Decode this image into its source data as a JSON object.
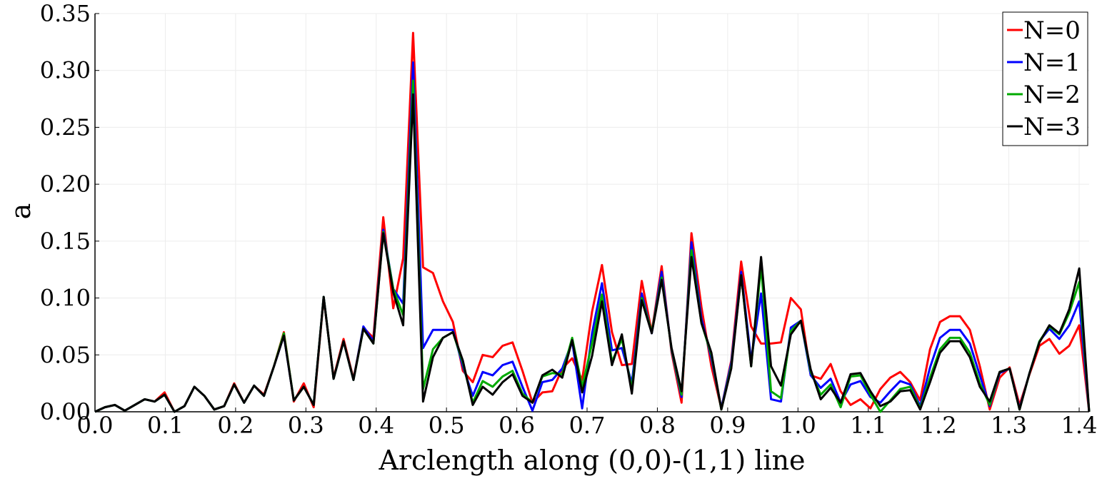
{
  "chart_data": {
    "type": "line",
    "x_label": "Arclength along (0,0)-(1,1) line",
    "y_label": "a",
    "x": [
      0,
      0.0141,
      0.0283,
      0.0424,
      0.0566,
      0.0707,
      0.0849,
      0.099,
      0.1131,
      0.1273,
      0.1414,
      0.1556,
      0.1697,
      0.1838,
      0.198,
      0.2121,
      0.2263,
      0.2404,
      0.2546,
      0.2687,
      0.2828,
      0.297,
      0.3111,
      0.3253,
      0.3394,
      0.3536,
      0.3677,
      0.3818,
      0.396,
      0.4101,
      0.4243,
      0.4384,
      0.4525,
      0.4667,
      0.4808,
      0.495,
      0.5091,
      0.5233,
      0.5374,
      0.5515,
      0.5657,
      0.5798,
      0.594,
      0.6081,
      0.6223,
      0.6364,
      0.6505,
      0.6647,
      0.6788,
      0.693,
      0.7071,
      0.7212,
      0.7354,
      0.7495,
      0.7637,
      0.7778,
      0.792,
      0.8061,
      0.8202,
      0.8344,
      0.8485,
      0.8627,
      0.8768,
      0.891,
      0.9051,
      0.9192,
      0.9334,
      0.9475,
      0.9617,
      0.9758,
      0.9899,
      1.0041,
      1.0182,
      1.0324,
      1.0465,
      1.0607,
      1.0748,
      1.0889,
      1.1031,
      1.1172,
      1.1314,
      1.1455,
      1.1597,
      1.1738,
      1.1879,
      1.2021,
      1.2162,
      1.2304,
      1.2445,
      1.2587,
      1.2728,
      1.2869,
      1.3011,
      1.3152,
      1.3294,
      1.3435,
      1.3576,
      1.3718,
      1.3859,
      1.4001,
      1.4142
    ],
    "series": [
      {
        "name": "N=0",
        "color": "#ff0000",
        "values": [
          0,
          0.004,
          0.006,
          0.001,
          0.006,
          0.011,
          0.009,
          0.017,
          0,
          0.005,
          0.022,
          0.014,
          0.002,
          0.005,
          0.025,
          0.008,
          0.023,
          0.015,
          0.04,
          0.07,
          0.009,
          0.025,
          0.004,
          0.1,
          0.03,
          0.064,
          0.029,
          0.074,
          0.065,
          0.171,
          0.091,
          0.135,
          0.333,
          0.127,
          0.122,
          0.097,
          0.079,
          0.036,
          0.026,
          0.05,
          0.048,
          0.058,
          0.061,
          0.036,
          0.008,
          0.017,
          0.018,
          0.038,
          0.047,
          0.028,
          0.088,
          0.129,
          0.07,
          0.041,
          0.042,
          0.115,
          0.07,
          0.128,
          0.052,
          0.008,
          0.157,
          0.092,
          0.04,
          0.003,
          0.045,
          0.132,
          0.075,
          0.06,
          0.06,
          0.061,
          0.1,
          0.09,
          0.032,
          0.029,
          0.042,
          0.018,
          0.006,
          0.011,
          0.003,
          0.02,
          0.03,
          0.035,
          0.026,
          0.01,
          0.055,
          0.079,
          0.084,
          0.084,
          0.072,
          0.04,
          0.002,
          0.03,
          0.039,
          0.006,
          0.033,
          0.058,
          0.064,
          0.051,
          0.058,
          0.076,
          0
        ]
      },
      {
        "name": "N=1",
        "color": "#0000ff",
        "values": [
          0,
          0.004,
          0.006,
          0.001,
          0.006,
          0.011,
          0.009,
          0.015,
          0,
          0.005,
          0.022,
          0.014,
          0.002,
          0.005,
          0.024,
          0.008,
          0.023,
          0.014,
          0.04,
          0.067,
          0.01,
          0.022,
          0.006,
          0.101,
          0.029,
          0.062,
          0.028,
          0.075,
          0.062,
          0.16,
          0.108,
          0.095,
          0.307,
          0.056,
          0.072,
          0.072,
          0.072,
          0.04,
          0.014,
          0.035,
          0.032,
          0.041,
          0.044,
          0.022,
          0.001,
          0.026,
          0.028,
          0.038,
          0.062,
          0.003,
          0.069,
          0.113,
          0.054,
          0.056,
          0.025,
          0.104,
          0.069,
          0.123,
          0.054,
          0.013,
          0.149,
          0.082,
          0.047,
          0.003,
          0.043,
          0.123,
          0.045,
          0.104,
          0.011,
          0.009,
          0.074,
          0.08,
          0.032,
          0.021,
          0.029,
          0.008,
          0.024,
          0.027,
          0.013,
          0.008,
          0.018,
          0.027,
          0.024,
          0.005,
          0.039,
          0.065,
          0.072,
          0.072,
          0.06,
          0.032,
          0.005,
          0.034,
          0.038,
          0.003,
          0.034,
          0.062,
          0.073,
          0.064,
          0.076,
          0.097,
          0
        ]
      },
      {
        "name": "N=2",
        "color": "#00aa00",
        "values": [
          0,
          0.004,
          0.006,
          0.001,
          0.006,
          0.011,
          0.009,
          0.015,
          0,
          0.005,
          0.022,
          0.014,
          0.002,
          0.005,
          0.024,
          0.008,
          0.023,
          0.014,
          0.04,
          0.069,
          0.01,
          0.022,
          0.006,
          0.101,
          0.029,
          0.062,
          0.028,
          0.073,
          0.06,
          0.158,
          0.108,
          0.085,
          0.291,
          0.02,
          0.055,
          0.065,
          0.07,
          0.043,
          0.008,
          0.027,
          0.022,
          0.031,
          0.036,
          0.016,
          0.008,
          0.031,
          0.034,
          0.033,
          0.065,
          0.022,
          0.06,
          0.103,
          0.044,
          0.064,
          0.02,
          0.1,
          0.07,
          0.118,
          0.055,
          0.015,
          0.142,
          0.078,
          0.05,
          0.002,
          0.04,
          0.12,
          0.04,
          0.128,
          0.018,
          0.012,
          0.071,
          0.08,
          0.035,
          0.015,
          0.024,
          0.004,
          0.031,
          0.032,
          0.015,
          0.0,
          0.01,
          0.02,
          0.022,
          0.003,
          0.03,
          0.055,
          0.065,
          0.065,
          0.052,
          0.025,
          0.006,
          0.035,
          0.038,
          0.002,
          0.034,
          0.062,
          0.075,
          0.068,
          0.087,
          0.114,
          0
        ]
      },
      {
        "name": "N=3",
        "color": "#000000",
        "values": [
          0,
          0.004,
          0.006,
          0.001,
          0.006,
          0.011,
          0.009,
          0.015,
          0,
          0.005,
          0.022,
          0.014,
          0.002,
          0.005,
          0.024,
          0.008,
          0.023,
          0.014,
          0.04,
          0.067,
          0.01,
          0.022,
          0.006,
          0.101,
          0.029,
          0.062,
          0.028,
          0.073,
          0.06,
          0.157,
          0.105,
          0.076,
          0.279,
          0.009,
          0.048,
          0.065,
          0.07,
          0.045,
          0.006,
          0.022,
          0.015,
          0.026,
          0.033,
          0.014,
          0.008,
          0.032,
          0.037,
          0.03,
          0.063,
          0.017,
          0.049,
          0.097,
          0.041,
          0.068,
          0.016,
          0.098,
          0.069,
          0.116,
          0.056,
          0.018,
          0.136,
          0.078,
          0.052,
          0.002,
          0.038,
          0.12,
          0.04,
          0.136,
          0.04,
          0.023,
          0.068,
          0.08,
          0.037,
          0.011,
          0.021,
          0.008,
          0.033,
          0.034,
          0.018,
          0.005,
          0.009,
          0.018,
          0.019,
          0.002,
          0.026,
          0.052,
          0.062,
          0.062,
          0.048,
          0.022,
          0.009,
          0.035,
          0.038,
          0.002,
          0.034,
          0.061,
          0.076,
          0.069,
          0.09,
          0.126,
          0
        ]
      }
    ],
    "xlim": [
      0,
      1.4142
    ],
    "ylim": [
      0,
      0.35
    ],
    "xticks": [
      {
        "value": 0,
        "label": "0.0"
      },
      {
        "value": 0.1,
        "label": "0.1"
      },
      {
        "value": 0.2,
        "label": "0.2"
      },
      {
        "value": 0.3,
        "label": "0.3"
      },
      {
        "value": 0.4,
        "label": "0.4"
      },
      {
        "value": 0.5,
        "label": "0.5"
      },
      {
        "value": 0.6,
        "label": "0.6"
      },
      {
        "value": 0.7,
        "label": "0.7"
      },
      {
        "value": 0.8,
        "label": "0.8"
      },
      {
        "value": 0.9,
        "label": "0.9"
      },
      {
        "value": 1,
        "label": "1.0"
      },
      {
        "value": 1.1,
        "label": "1.1"
      },
      {
        "value": 1.2,
        "label": "1.2"
      },
      {
        "value": 1.3,
        "label": "1.3"
      },
      {
        "value": 1.4,
        "label": "1.4"
      }
    ],
    "yticks": [
      {
        "value": 0,
        "label": "0.00"
      },
      {
        "value": 0.05,
        "label": "0.05"
      },
      {
        "value": 0.1,
        "label": "0.10"
      },
      {
        "value": 0.15,
        "label": "0.15"
      },
      {
        "value": 0.2,
        "label": "0.20"
      },
      {
        "value": 0.25,
        "label": "0.25"
      },
      {
        "value": 0.3,
        "label": "0.30"
      },
      {
        "value": 0.35,
        "label": "0.35"
      }
    ],
    "grid": true,
    "legend": "upper-right"
  }
}
